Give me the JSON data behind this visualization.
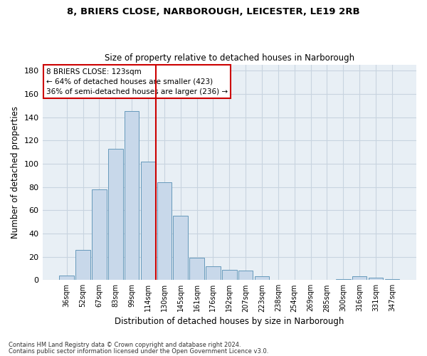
{
  "title_line1": "8, BRIERS CLOSE, NARBOROUGH, LEICESTER, LE19 2RB",
  "title_line2": "Size of property relative to detached houses in Narborough",
  "xlabel": "Distribution of detached houses by size in Narborough",
  "ylabel": "Number of detached properties",
  "categories": [
    "36sqm",
    "52sqm",
    "67sqm",
    "83sqm",
    "99sqm",
    "114sqm",
    "130sqm",
    "145sqm",
    "161sqm",
    "176sqm",
    "192sqm",
    "207sqm",
    "223sqm",
    "238sqm",
    "254sqm",
    "269sqm",
    "285sqm",
    "300sqm",
    "316sqm",
    "331sqm",
    "347sqm"
  ],
  "values": [
    4,
    26,
    78,
    113,
    145,
    102,
    84,
    55,
    19,
    12,
    9,
    8,
    3,
    0,
    0,
    0,
    0,
    1,
    3,
    2,
    1
  ],
  "bar_color": "#c8d8ea",
  "bar_edge_color": "#6699bb",
  "grid_color": "#c8d4e0",
  "background_color": "#e8eff5",
  "vline_x": 5.5,
  "vline_color": "#cc0000",
  "annotation_line1": "8 BRIERS CLOSE: 123sqm",
  "annotation_line2": "← 64% of detached houses are smaller (423)",
  "annotation_line3": "36% of semi-detached houses are larger (236) →",
  "annotation_box_color": "#cc0000",
  "ylim": [
    0,
    185
  ],
  "yticks": [
    0,
    20,
    40,
    60,
    80,
    100,
    120,
    140,
    160,
    180
  ],
  "footer_line1": "Contains HM Land Registry data © Crown copyright and database right 2024.",
  "footer_line2": "Contains public sector information licensed under the Open Government Licence v3.0."
}
